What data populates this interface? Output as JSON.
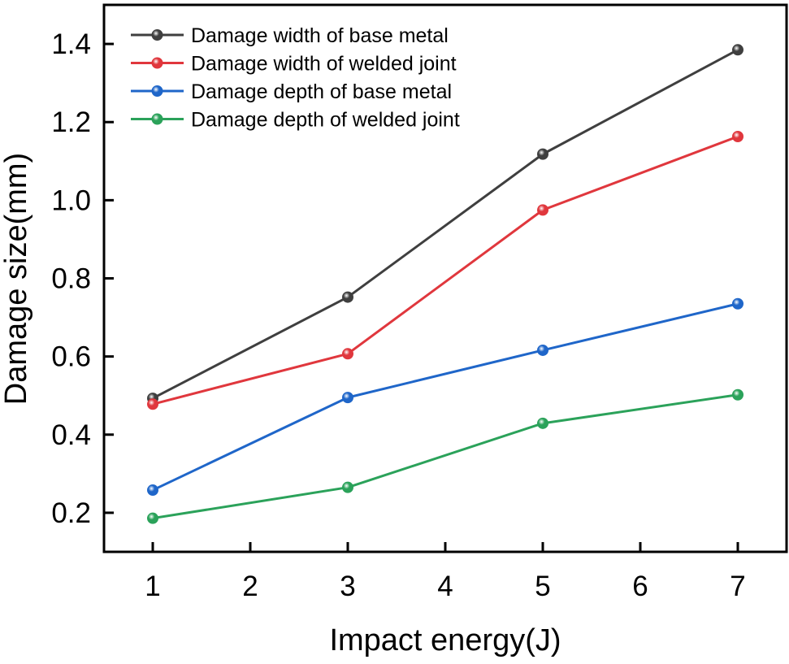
{
  "chart_data": {
    "type": "line",
    "title": "",
    "xlabel": "Impact energy(J)",
    "ylabel": "Damage size(mm)",
    "xlim": [
      0.5,
      7.5
    ],
    "ylim": [
      0.1,
      1.5
    ],
    "xticks": [
      1,
      2,
      3,
      4,
      5,
      6,
      7
    ],
    "yticks": [
      0.2,
      0.4,
      0.6,
      0.8,
      1.0,
      1.2,
      1.4
    ],
    "xtick_labels": [
      "1",
      "2",
      "3",
      "4",
      "5",
      "6",
      "7"
    ],
    "ytick_labels": [
      "0.2",
      "0.4",
      "0.6",
      "0.8",
      "1.0",
      "1.2",
      "1.4"
    ],
    "grid": false,
    "legend_position": "top-left",
    "x": [
      1,
      3,
      5,
      7
    ],
    "series": [
      {
        "name": "Damage width of base metal",
        "color": "#3f3f3f",
        "values": [
          0.493,
          0.752,
          1.118,
          1.385
        ]
      },
      {
        "name": "Damage width of welded joint",
        "color": "#e0373d",
        "values": [
          0.478,
          0.607,
          0.975,
          1.163
        ]
      },
      {
        "name": "Damage depth of base metal",
        "color": "#1f66c9",
        "values": [
          0.258,
          0.495,
          0.616,
          0.735
        ]
      },
      {
        "name": "Damage depth of welded joint",
        "color": "#2ba25a",
        "values": [
          0.186,
          0.265,
          0.429,
          0.502
        ]
      }
    ]
  }
}
